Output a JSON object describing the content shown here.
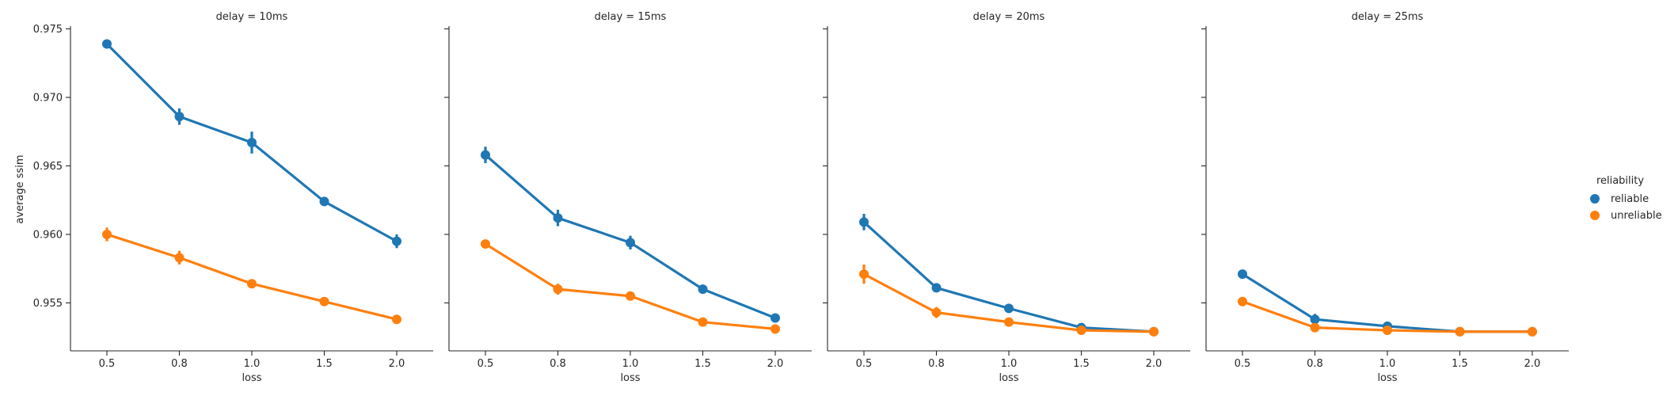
{
  "chart_data": {
    "type": "line",
    "ylabel": "average ssim",
    "ylim": [
      0.9515,
      0.9752
    ],
    "yticks": [
      0.955,
      0.96,
      0.965,
      0.97,
      0.975
    ],
    "ytick_labels": [
      "0.955",
      "0.960",
      "0.965",
      "0.970",
      "0.975"
    ],
    "categories": [
      "0.5",
      "0.8",
      "1.0",
      "1.5",
      "2.0"
    ],
    "legend": {
      "title": "reliability",
      "placement": "right",
      "entries": [
        "reliable",
        "unreliable"
      ]
    },
    "colors": {
      "reliable": "#1f77b4",
      "unreliable": "#ff7f0e",
      "axis": "#262626"
    },
    "panels": [
      {
        "title": "delay = 10ms",
        "xlabel": "loss",
        "series": [
          {
            "name": "reliable",
            "values": [
              0.9739,
              0.9686,
              0.9667,
              0.9624,
              0.9595
            ],
            "errors": [
              0.0002,
              0.0006,
              0.0008,
              0.0002,
              0.0005
            ]
          },
          {
            "name": "unreliable",
            "values": [
              0.96,
              0.9583,
              0.9564,
              0.9551,
              0.9538
            ],
            "errors": [
              0.0005,
              0.0005,
              0.0003,
              0.0002,
              0.0002
            ]
          }
        ]
      },
      {
        "title": "delay = 15ms",
        "xlabel": "loss",
        "series": [
          {
            "name": "reliable",
            "values": [
              0.9658,
              0.9612,
              0.9594,
              0.956,
              0.9539
            ],
            "errors": [
              0.0006,
              0.0006,
              0.0005,
              0.0003,
              0.0002
            ]
          },
          {
            "name": "unreliable",
            "values": [
              0.9593,
              0.956,
              0.9555,
              0.9536,
              0.9531
            ],
            "errors": [
              0.0002,
              0.0004,
              0.0002,
              0.0002,
              0.0002
            ]
          }
        ]
      },
      {
        "title": "delay = 20ms",
        "xlabel": "loss",
        "series": [
          {
            "name": "reliable",
            "values": [
              0.9609,
              0.9561,
              0.9546,
              0.9532,
              0.9529
            ],
            "errors": [
              0.0006,
              0.0002,
              0.0002,
              0.0002,
              0.0001
            ]
          },
          {
            "name": "unreliable",
            "values": [
              0.9571,
              0.9543,
              0.9536,
              0.953,
              0.9529
            ],
            "errors": [
              0.0007,
              0.0004,
              0.0002,
              0.0002,
              0.0001
            ]
          }
        ]
      },
      {
        "title": "delay = 25ms",
        "xlabel": "loss",
        "series": [
          {
            "name": "reliable",
            "values": [
              0.9571,
              0.9538,
              0.9533,
              0.9529,
              0.9529
            ],
            "errors": [
              0.0002,
              0.0004,
              0.0002,
              0.0001,
              0.0001
            ]
          },
          {
            "name": "unreliable",
            "values": [
              0.9551,
              0.9532,
              0.953,
              0.9529,
              0.9529
            ],
            "errors": [
              0.0002,
              0.0002,
              0.0001,
              0.0001,
              0.0001
            ]
          }
        ]
      }
    ]
  }
}
